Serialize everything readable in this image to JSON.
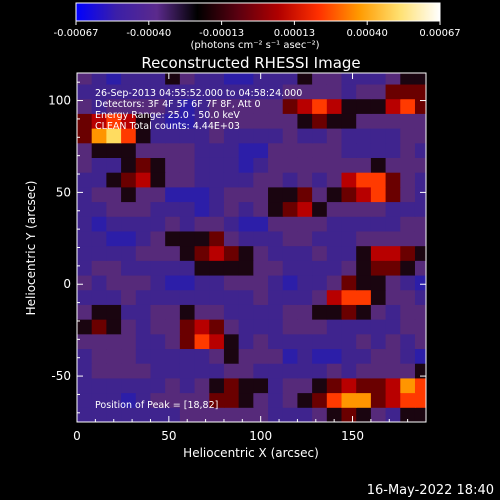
{
  "colorbar": {
    "ticks": [
      "-0.00067",
      "-0.00040",
      "-0.00013",
      "0.00013",
      "0.00040",
      "0.00067"
    ],
    "units": "(photons cm⁻² s⁻¹ asec⁻²)",
    "colors": [
      "#0000ff",
      "#3b1fa8",
      "#5b2a8c",
      "#000000",
      "#5a0010",
      "#b00000",
      "#ff3000",
      "#ff9a00",
      "#ffe070",
      "#ffffff"
    ]
  },
  "chart_data": {
    "type": "heatmap",
    "title": "Reconstructed RHESSI Image",
    "xlabel": "Heliocentric X (arcsec)",
    "ylabel": "Heliocentric Y (arcsec)",
    "xlim": [
      0,
      190
    ],
    "ylim": [
      -75,
      115
    ],
    "xticks": [
      "0",
      "50",
      "100",
      "150"
    ],
    "yticks": [
      "-50",
      "0",
      "50",
      "100"
    ],
    "xtick_values": [
      0,
      50,
      100,
      150
    ],
    "ytick_values": [
      -50,
      0,
      50,
      100
    ],
    "annotations": [
      "26-Sep-2013 04:55:52.000 to 04:58:24.000",
      "Detectors: 3F 4F 5F 6F 7F 8F, Att 0",
      "Energy Range: 25.0 - 50.0 keV",
      "CLEAN  Total counts: 4.44E+03"
    ],
    "peak_label": "Position of Peak = [18,82]",
    "peak": [
      18,
      82
    ],
    "bright_sources": [
      {
        "x": 18,
        "y": 82,
        "level": 1.0
      },
      {
        "x": 150,
        "y": -62,
        "level": 0.95
      },
      {
        "x": 183,
        "y": -58,
        "level": 0.9
      },
      {
        "x": 160,
        "y": 55,
        "level": 0.8
      },
      {
        "x": 130,
        "y": 95,
        "level": 0.75
      },
      {
        "x": 70,
        "y": -28,
        "level": 0.7
      },
      {
        "x": 150,
        "y": -8,
        "level": 0.7
      },
      {
        "x": 75,
        "y": 18,
        "level": 0.6
      },
      {
        "x": 120,
        "y": 45,
        "level": 0.6
      },
      {
        "x": 180,
        "y": 100,
        "level": 0.7
      },
      {
        "x": 170,
        "y": 15,
        "level": 0.6
      },
      {
        "x": 15,
        "y": -22,
        "level": 0.45
      },
      {
        "x": 85,
        "y": -60,
        "level": 0.5
      },
      {
        "x": 35,
        "y": 60,
        "level": 0.5
      }
    ]
  },
  "footer": {
    "timestamp": "16-May-2022 18:40"
  }
}
